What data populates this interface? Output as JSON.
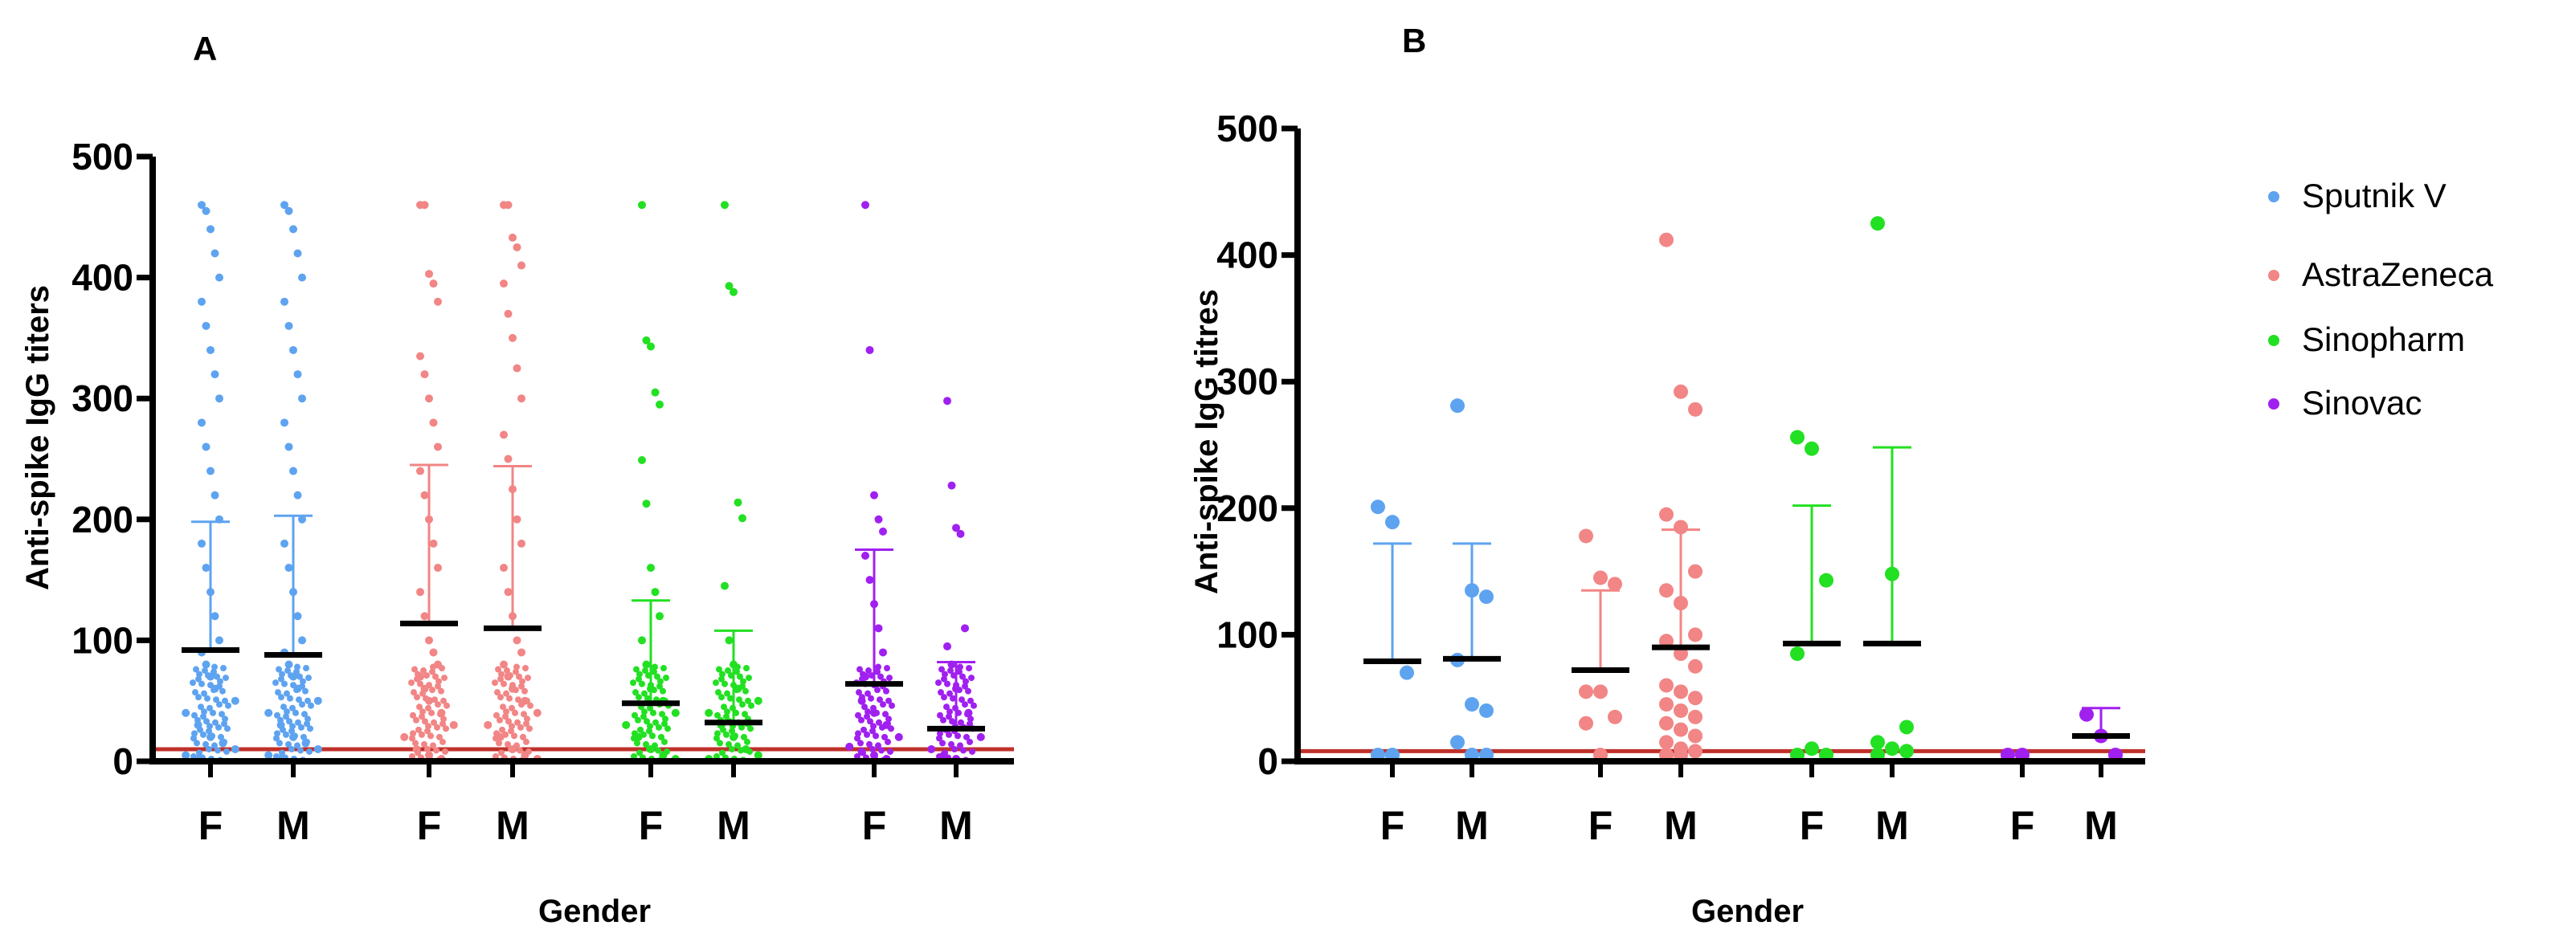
{
  "colors": {
    "sputnik": "#5ea3f0",
    "astrazeneca": "#f28585",
    "sinopharm": "#22e022",
    "sinovac": "#a020f0",
    "threshold": "#c0302a",
    "axis": "#000000"
  },
  "legend": {
    "items": [
      {
        "label": "Sputnik V",
        "color": "#5ea3f0"
      },
      {
        "label": "AstraZeneca",
        "color": "#f28585"
      },
      {
        "label": "Sinopharm",
        "color": "#22e022"
      },
      {
        "label": "Sinovac",
        "color": "#a020f0"
      }
    ]
  },
  "chart_data": [
    {
      "type": "scatter",
      "panel": "A",
      "title": "",
      "xlabel": "Gender",
      "ylabel": "Anti-spike IgG titers",
      "ylim": [
        0,
        500
      ],
      "yticks": [
        0,
        100,
        200,
        300,
        400,
        500
      ],
      "categories": [
        "F",
        "M",
        "F",
        "M",
        "F",
        "M",
        "F",
        "M"
      ],
      "threshold": 10,
      "groups": [
        {
          "vaccine": "Sputnik V",
          "gender": "F",
          "mean": 92,
          "sd_upper": 198,
          "points": [
            460,
            455,
            440,
            420,
            400,
            380,
            360,
            340,
            320,
            300,
            280,
            260,
            240,
            220,
            200,
            180,
            160,
            140,
            120,
            100,
            90,
            80,
            70,
            60,
            50,
            40,
            30,
            20,
            15,
            10,
            5,
            2
          ]
        },
        {
          "vaccine": "Sputnik V",
          "gender": "M",
          "mean": 88,
          "sd_upper": 203,
          "points": [
            460,
            455,
            440,
            420,
            400,
            380,
            360,
            340,
            320,
            300,
            280,
            260,
            240,
            220,
            200,
            180,
            160,
            140,
            120,
            100,
            90,
            80,
            70,
            60,
            50,
            40,
            30,
            20,
            15,
            10,
            5,
            2
          ]
        },
        {
          "vaccine": "AstraZeneca",
          "gender": "F",
          "mean": 114,
          "sd_upper": 245,
          "points": [
            460,
            460,
            403,
            395,
            380,
            335,
            320,
            300,
            280,
            260,
            240,
            220,
            200,
            180,
            160,
            140,
            120,
            100,
            90,
            80,
            70,
            60,
            50,
            40,
            30,
            20,
            10,
            5,
            2
          ]
        },
        {
          "vaccine": "AstraZeneca",
          "gender": "M",
          "mean": 110,
          "sd_upper": 244,
          "points": [
            460,
            460,
            433,
            425,
            410,
            395,
            370,
            350,
            325,
            300,
            270,
            250,
            225,
            200,
            180,
            160,
            140,
            120,
            100,
            90,
            80,
            70,
            60,
            50,
            40,
            30,
            20,
            10,
            5,
            2
          ]
        },
        {
          "vaccine": "Sinopharm",
          "gender": "F",
          "mean": 48,
          "sd_upper": 133,
          "points": [
            460,
            348,
            343,
            305,
            295,
            249,
            213,
            160,
            140,
            120,
            100,
            80,
            60,
            50,
            40,
            30,
            20,
            10,
            5,
            2
          ]
        },
        {
          "vaccine": "Sinopharm",
          "gender": "M",
          "mean": 32,
          "sd_upper": 108,
          "points": [
            460,
            393,
            388,
            214,
            201,
            145,
            100,
            80,
            60,
            50,
            40,
            30,
            20,
            10,
            5,
            2
          ]
        },
        {
          "vaccine": "Sinovac",
          "gender": "F",
          "mean": 64,
          "sd_upper": 175,
          "points": [
            460,
            340,
            220,
            200,
            190,
            170,
            150,
            130,
            110,
            90,
            70,
            50,
            40,
            30,
            20,
            12,
            8,
            5,
            2
          ]
        },
        {
          "vaccine": "Sinovac",
          "gender": "M",
          "mean": 27,
          "sd_upper": 82,
          "points": [
            298,
            228,
            193,
            188,
            110,
            95,
            80,
            60,
            40,
            20,
            10,
            5,
            2
          ]
        }
      ]
    },
    {
      "type": "scatter",
      "panel": "B",
      "title": "",
      "xlabel": "Gender",
      "ylabel": "Anti-spike IgG titres",
      "ylim": [
        0,
        500
      ],
      "yticks": [
        0,
        100,
        200,
        300,
        400,
        500
      ],
      "categories": [
        "F",
        "M",
        "F",
        "M",
        "F",
        "M",
        "F",
        "M"
      ],
      "threshold": 8,
      "groups": [
        {
          "vaccine": "Sputnik V",
          "gender": "F",
          "mean": 79,
          "sd_upper": 172,
          "points": [
            201,
            189,
            70,
            5,
            5
          ]
        },
        {
          "vaccine": "Sputnik V",
          "gender": "M",
          "mean": 81,
          "sd_upper": 172,
          "points": [
            281,
            135,
            130,
            80,
            45,
            40,
            15,
            5,
            5
          ]
        },
        {
          "vaccine": "AstraZeneca",
          "gender": "F",
          "mean": 72,
          "sd_upper": 135,
          "points": [
            178,
            145,
            140,
            55,
            55,
            35,
            30,
            5
          ]
        },
        {
          "vaccine": "AstraZeneca",
          "gender": "M",
          "mean": 90,
          "sd_upper": 183,
          "points": [
            412,
            292,
            278,
            195,
            185,
            150,
            135,
            125,
            100,
            95,
            85,
            75,
            60,
            55,
            50,
            45,
            40,
            35,
            30,
            25,
            20,
            15,
            10,
            8,
            5,
            5
          ]
        },
        {
          "vaccine": "Sinopharm",
          "gender": "F",
          "mean": 93,
          "sd_upper": 202,
          "points": [
            256,
            247,
            143,
            85,
            10,
            5,
            5
          ]
        },
        {
          "vaccine": "Sinopharm",
          "gender": "M",
          "mean": 93,
          "sd_upper": 248,
          "points": [
            425,
            148,
            27,
            15,
            10,
            8,
            5
          ]
        },
        {
          "vaccine": "Sinovac",
          "gender": "F",
          "mean": 0,
          "sd_upper": 0,
          "points": [
            5,
            5
          ]
        },
        {
          "vaccine": "Sinovac",
          "gender": "M",
          "mean": 20,
          "sd_upper": 42,
          "points": [
            37,
            20,
            5
          ]
        }
      ]
    }
  ]
}
